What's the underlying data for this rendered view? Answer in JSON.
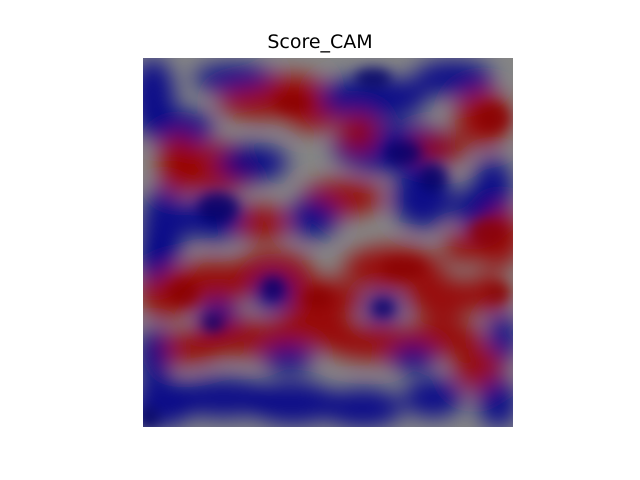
{
  "figure": {
    "title": "Score_CAM"
  },
  "heatmap": {
    "colormap": "seismic",
    "colors": {
      "negative": "#00008a",
      "neutral": "#858585",
      "positive": "#9a0000"
    }
  }
}
